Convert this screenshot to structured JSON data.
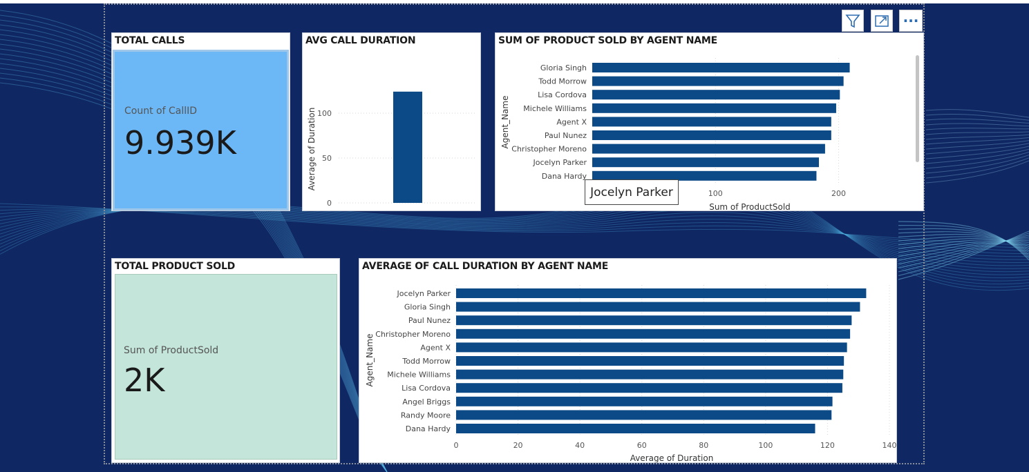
{
  "toolbar": {
    "filter_icon": "filter-icon",
    "focus_icon": "focus-mode-icon",
    "more_label": "···"
  },
  "kpi_calls": {
    "title": "TOTAL CALLS",
    "label": "Count of CallID",
    "value": "9.939K",
    "color": "#6cb8f6"
  },
  "kpi_products": {
    "title": "TOTAL PRODUCT SOLD",
    "label": "Sum of ProductSold",
    "value": "2K",
    "color": "#c4e5da"
  },
  "tooltip": {
    "text": "Jocelyn Parker"
  },
  "colors": {
    "bar": "#0b4a86",
    "background": "#0f2763"
  },
  "chart_data": [
    {
      "type": "bar",
      "title": "AVG CALL DURATION",
      "ylabel": "Average of Duration",
      "xlabel": "",
      "values": [
        124
      ],
      "ylim": [
        0,
        130
      ],
      "yticks": [
        0,
        50,
        100
      ],
      "grid": true
    },
    {
      "type": "bar",
      "orientation": "horizontal",
      "title": "SUM OF PRODUCT SOLD BY AGENT NAME",
      "ylabel": "Agent_Name",
      "xlabel": "Sum of ProductSold",
      "categories": [
        "Gloria Singh",
        "Todd Morrow",
        "Lisa Cordova",
        "Michele Williams",
        "Agent X",
        "Paul Nunez",
        "Christopher Moreno",
        "Jocelyn Parker",
        "Dana Hardy"
      ],
      "values": [
        209,
        204,
        201,
        198,
        194,
        194,
        189,
        184,
        182
      ],
      "xlim": [
        0,
        230
      ],
      "xticks": [
        100,
        200
      ],
      "grid": true
    },
    {
      "type": "bar",
      "orientation": "horizontal",
      "title": "AVERAGE OF CALL DURATION BY AGENT NAME",
      "ylabel": "Agent_Name",
      "xlabel": "Average of Duration",
      "categories": [
        "Jocelyn Parker",
        "Gloria Singh",
        "Paul Nunez",
        "Christopher Moreno",
        "Agent X",
        "Todd Morrow",
        "Michele Williams",
        "Lisa Cordova",
        "Angel Briggs",
        "Randy Moore",
        "Dana Hardy"
      ],
      "values": [
        132.5,
        130.5,
        127.8,
        127.3,
        126.3,
        125.3,
        125.1,
        124.8,
        121.6,
        121.3,
        116.0
      ],
      "xlim": [
        0,
        140
      ],
      "xticks": [
        0,
        20,
        40,
        60,
        80,
        100,
        120,
        140
      ],
      "grid": true
    }
  ]
}
